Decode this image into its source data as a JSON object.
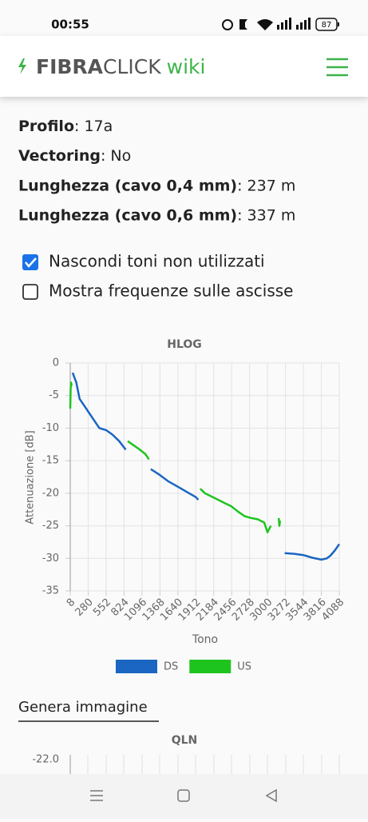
{
  "status_bar": {
    "time": "00:55",
    "battery": "87"
  },
  "header": {
    "brand_bold": "FIBRA",
    "brand_light": "CLICK",
    "brand_wiki": "wiki"
  },
  "info": [
    {
      "label": "Profilo",
      "value": ": 17a"
    },
    {
      "label": "Vectoring",
      "value": ": No"
    },
    {
      "label": "Lunghezza (cavo 0,4 mm)",
      "value": ": 237 m"
    },
    {
      "label": "Lunghezza (cavo 0,6 mm)",
      "value": ": 337 m"
    }
  ],
  "options": [
    {
      "label": "Nascondi toni non utilizzati",
      "checked": true
    },
    {
      "label": "Mostra frequenze sulle ascisse",
      "checked": false
    }
  ],
  "chart_data": {
    "type": "line",
    "title": "HLOG",
    "x_label": "Tono",
    "y_label": "Attenuazione [dB]",
    "xlim": [
      8,
      4088
    ],
    "xticks": [
      8,
      280,
      552,
      824,
      1096,
      1368,
      1640,
      1912,
      2184,
      2456,
      2728,
      3000,
      3272,
      3544,
      3816,
      4088
    ],
    "ylim": [
      -35,
      0
    ],
    "yticks": [
      0,
      -5,
      -10,
      -15,
      -20,
      -25,
      -30,
      -35
    ],
    "grid": true,
    "legend": "bottom",
    "series": [
      {
        "name": "DS",
        "color": "#1a66c2",
        "x": [
          44,
          100,
          150,
          250,
          350,
          450,
          552,
          650,
          750,
          850,
          900,
          1230,
          1368,
          1500,
          1640,
          1776,
          1912,
          1950,
          2000,
          3260,
          3408,
          3544,
          3680,
          3816,
          3900,
          3952,
          4020,
          4088
        ],
        "values": [
          -1.5,
          -3,
          -5.5,
          -7,
          -8.5,
          -10,
          -10.3,
          -11,
          -12,
          -13.3,
          null,
          -16.3,
          -17.2,
          -18.2,
          -19,
          -19.8,
          -20.6,
          -21,
          null,
          -29.2,
          -29.3,
          -29.5,
          -29.9,
          -30.2,
          -30,
          -29.6,
          -28.8,
          -27.8
        ]
      },
      {
        "name": "US",
        "color": "#1ec41e",
        "x": [
          8,
          14,
          20,
          30,
          60,
          880,
          950,
          1050,
          1150,
          1200,
          1250,
          1980,
          2050,
          2150,
          2250,
          2350,
          2450,
          2550,
          2650,
          2750,
          2850,
          2950,
          3000,
          3050,
          3100,
          3170,
          3180,
          3190
        ],
        "values": [
          -7,
          -4,
          -3,
          -3.5,
          null,
          -12,
          -12.5,
          -13.2,
          -14,
          -14.8,
          null,
          -19.3,
          -20,
          -20.5,
          -21,
          -21.5,
          -22,
          -22.8,
          -23.5,
          -23.8,
          -24,
          -24.5,
          -26,
          -25,
          null,
          -23.8,
          -25,
          -24.2
        ]
      }
    ]
  },
  "link": "Genera immagine",
  "next_chart": {
    "title": "QLN",
    "ytick": "-22.0"
  }
}
